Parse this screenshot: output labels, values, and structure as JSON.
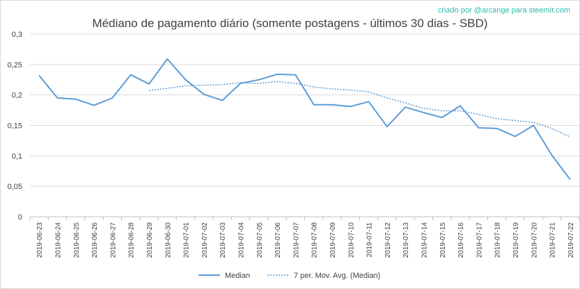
{
  "watermark": "criado por @arcange para steemit.com",
  "chart_data": {
    "type": "line",
    "title": "Médiano de pagamento diário (somente postagens - últimos 30 dias - SBD)",
    "xlabel": "",
    "ylabel": "",
    "ylim": [
      0,
      0.3
    ],
    "y_ticks": [
      "0",
      "0,05",
      "0,1",
      "0,15",
      "0,2",
      "0,25",
      "0,3"
    ],
    "grid": "horizontal",
    "legend_position": "bottom",
    "colors": {
      "series": "#5b9bd5",
      "grid": "#d9d9d9",
      "axis": "#bfbfbf",
      "text": "#404040"
    },
    "categories": [
      "2019-06-23",
      "2019-06-24",
      "2019-06-25",
      "2019-06-26",
      "2019-06-27",
      "2019-06-28",
      "2019-06-29",
      "2019-06-30",
      "2019-07-01",
      "2019-07-02",
      "2019-07-03",
      "2019-07-04",
      "2019-07-05",
      "2019-07-06",
      "2019-07-07",
      "2019-07-08",
      "2019-07-09",
      "2019-07-10",
      "2019-07-11",
      "2019-07-12",
      "2019-07-13",
      "2019-07-14",
      "2019-07-15",
      "2019-07-16",
      "2019-07-17",
      "2019-07-18",
      "2019-07-19",
      "2019-07-20",
      "2019-07-21",
      "2019-07-22"
    ],
    "series": [
      {
        "name": "Median",
        "style": "solid",
        "values": [
          0.232,
          0.195,
          0.193,
          0.183,
          0.195,
          0.233,
          0.218,
          0.259,
          0.225,
          0.201,
          0.191,
          0.219,
          0.225,
          0.234,
          0.233,
          0.184,
          0.184,
          0.181,
          0.189,
          0.148,
          0.18,
          0.171,
          0.163,
          0.182,
          0.146,
          0.145,
          0.132,
          0.15,
          0.101,
          0.061
        ]
      },
      {
        "name": "7 per. Mov. Avg. (Median)",
        "style": "dotted",
        "values": [
          null,
          null,
          null,
          null,
          null,
          null,
          0.207,
          0.211,
          0.215,
          0.216,
          0.217,
          0.22,
          0.219,
          0.222,
          0.219,
          0.213,
          0.21,
          0.208,
          0.205,
          0.195,
          0.187,
          0.178,
          0.174,
          0.174,
          0.168,
          0.161,
          0.158,
          0.155,
          0.145,
          0.131
        ]
      }
    ]
  }
}
